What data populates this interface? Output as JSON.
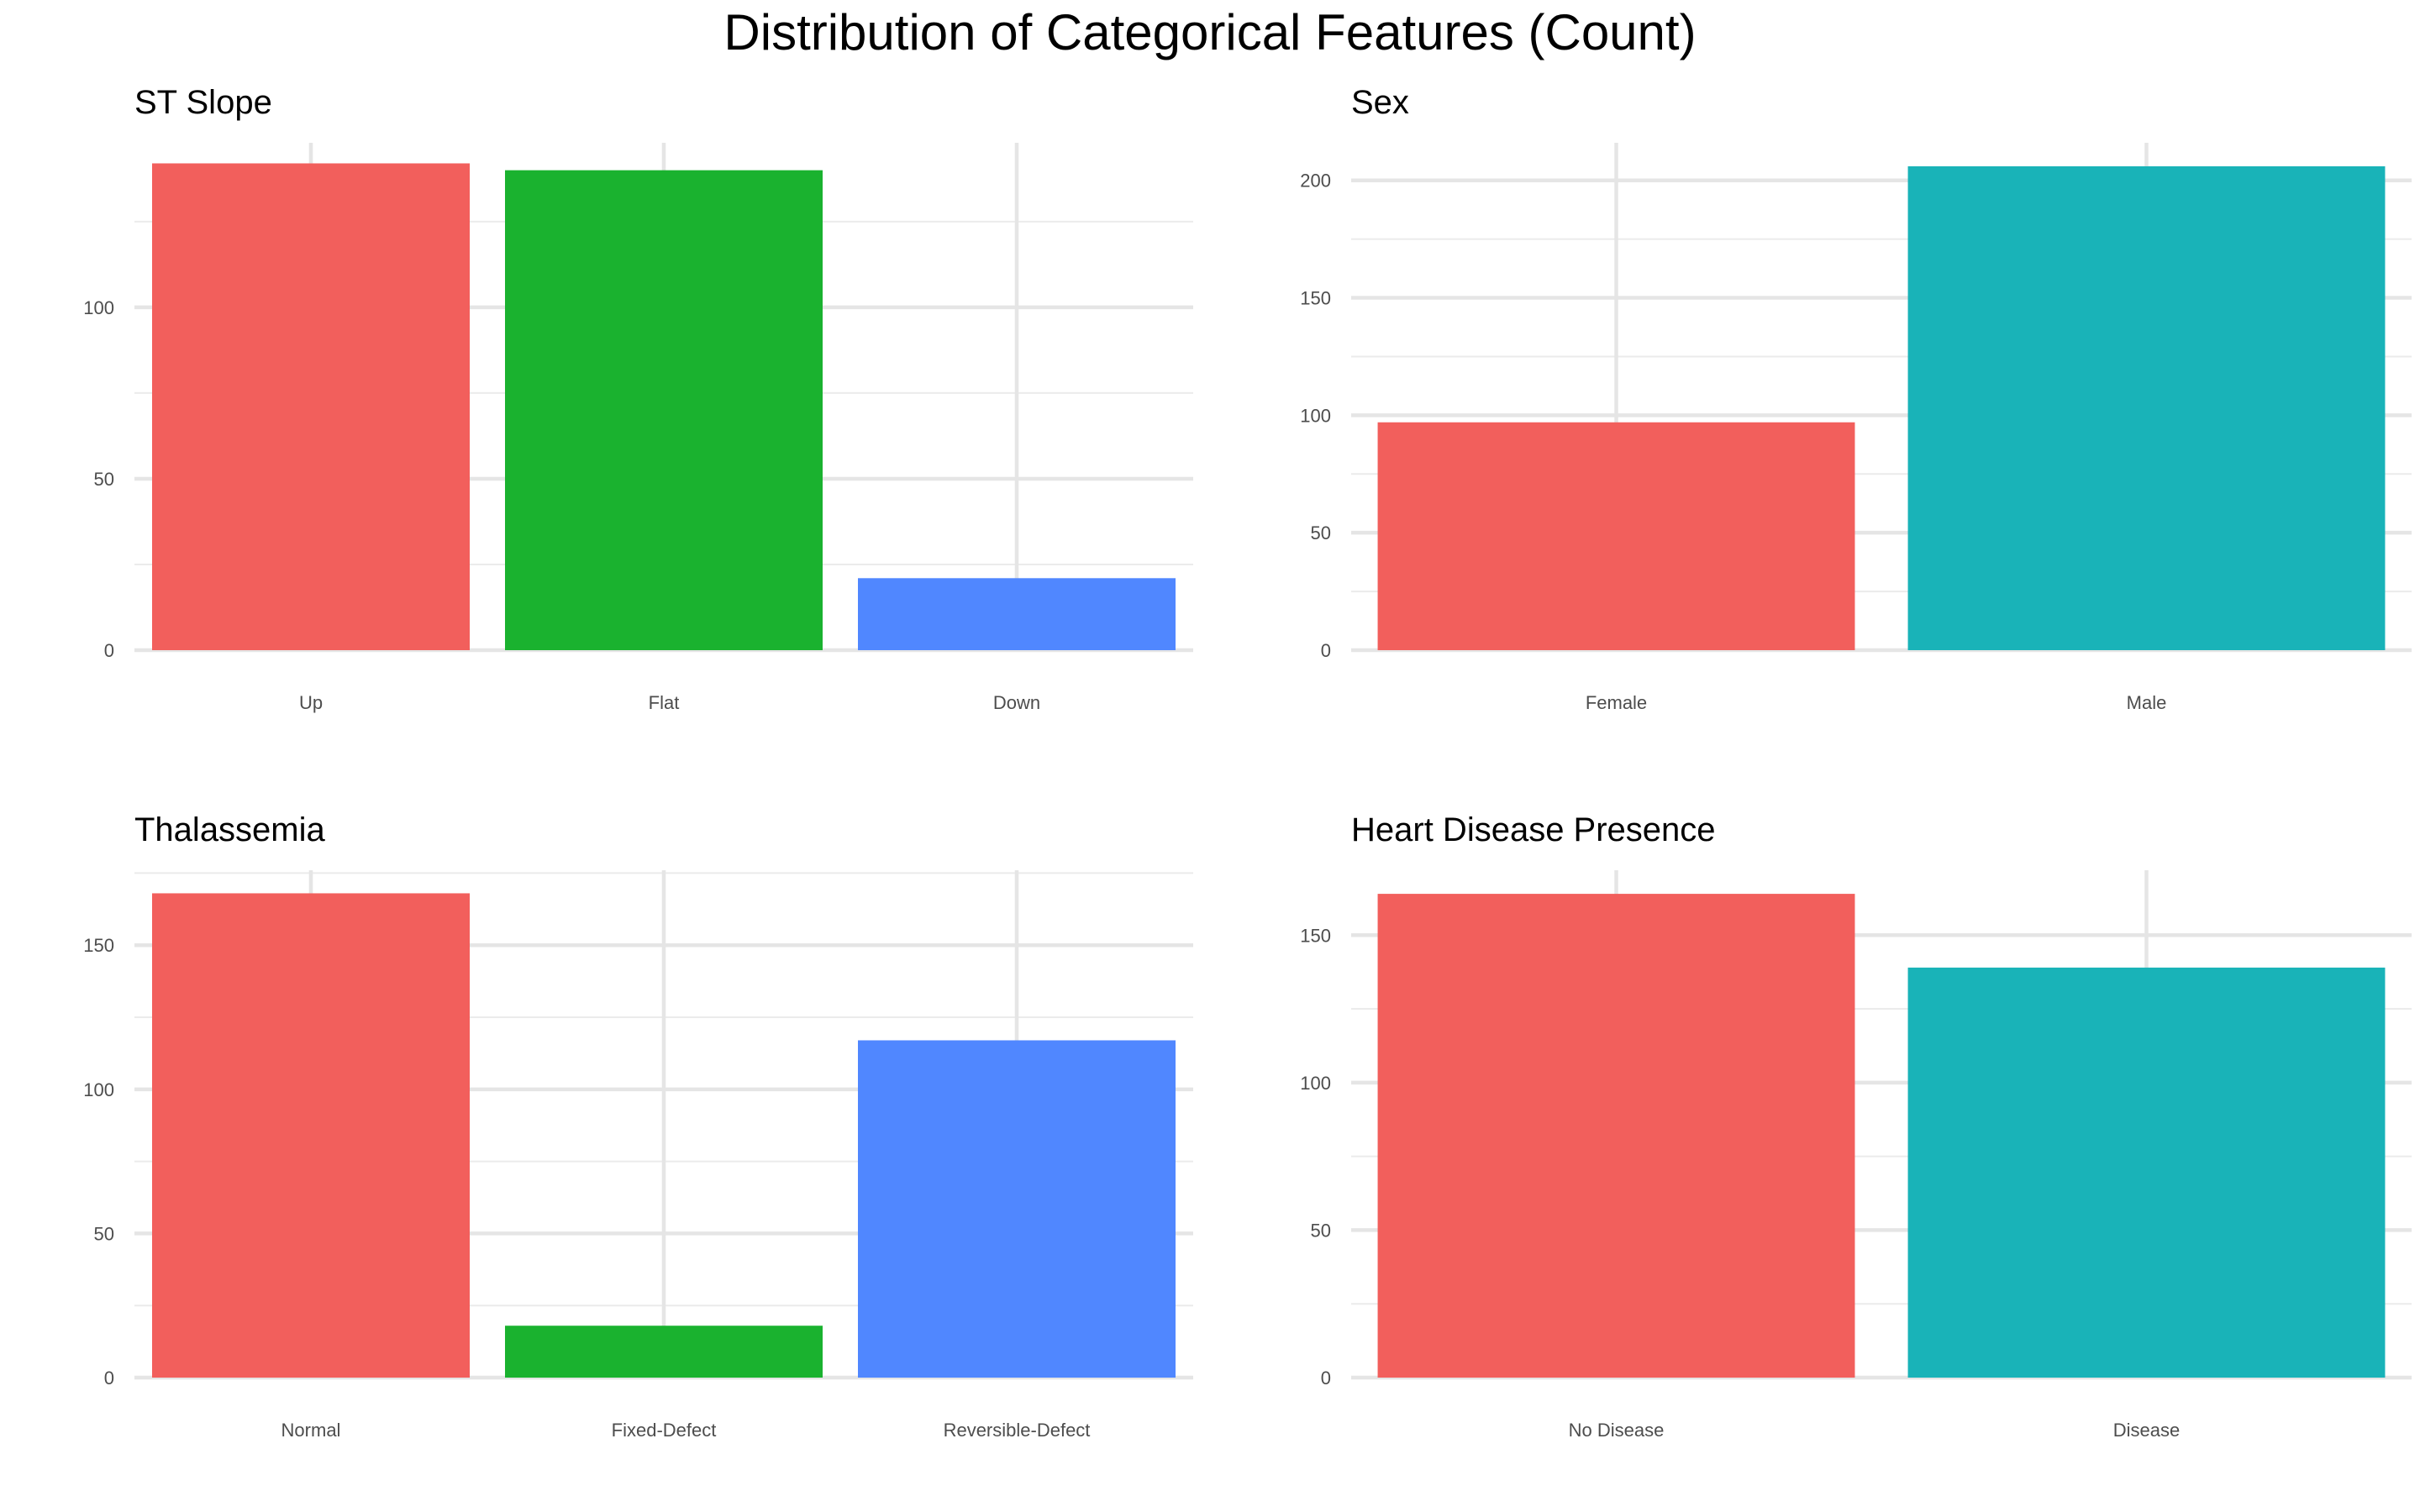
{
  "title": "Distribution of Categorical Features (Count)",
  "chart_data": [
    {
      "type": "bar",
      "title": "ST Slope",
      "categories": [
        "Up",
        "Flat",
        "Down"
      ],
      "values": [
        142,
        140,
        21
      ],
      "colors": [
        "#F25F5C",
        "#1AB22F",
        "#5087FF"
      ],
      "yticks": [
        0,
        50,
        100
      ],
      "ylim": [
        0,
        148
      ],
      "grid": true,
      "legend": "none"
    },
    {
      "type": "bar",
      "title": "Sex",
      "categories": [
        "Female",
        "Male"
      ],
      "values": [
        97,
        206
      ],
      "colors": [
        "#F25F5C",
        "#19B3B8"
      ],
      "yticks": [
        0,
        50,
        100,
        150,
        200
      ],
      "ylim": [
        0,
        216
      ],
      "grid": true,
      "legend": "none"
    },
    {
      "type": "bar",
      "title": "Thalassemia",
      "categories": [
        "Normal",
        "Fixed-Defect",
        "Reversible-Defect"
      ],
      "values": [
        168,
        18,
        117
      ],
      "colors": [
        "#F25F5C",
        "#1AB22F",
        "#5087FF"
      ],
      "yticks": [
        0,
        50,
        100,
        150
      ],
      "ylim": [
        0,
        176
      ],
      "grid": true,
      "legend": "none"
    },
    {
      "type": "bar",
      "title": "Heart Disease Presence",
      "categories": [
        "No Disease",
        "Disease"
      ],
      "values": [
        164,
        139
      ],
      "colors": [
        "#F25F5C",
        "#19B3B8"
      ],
      "yticks": [
        0,
        50,
        100,
        150
      ],
      "ylim": [
        0,
        172
      ],
      "grid": true,
      "legend": "none"
    }
  ]
}
